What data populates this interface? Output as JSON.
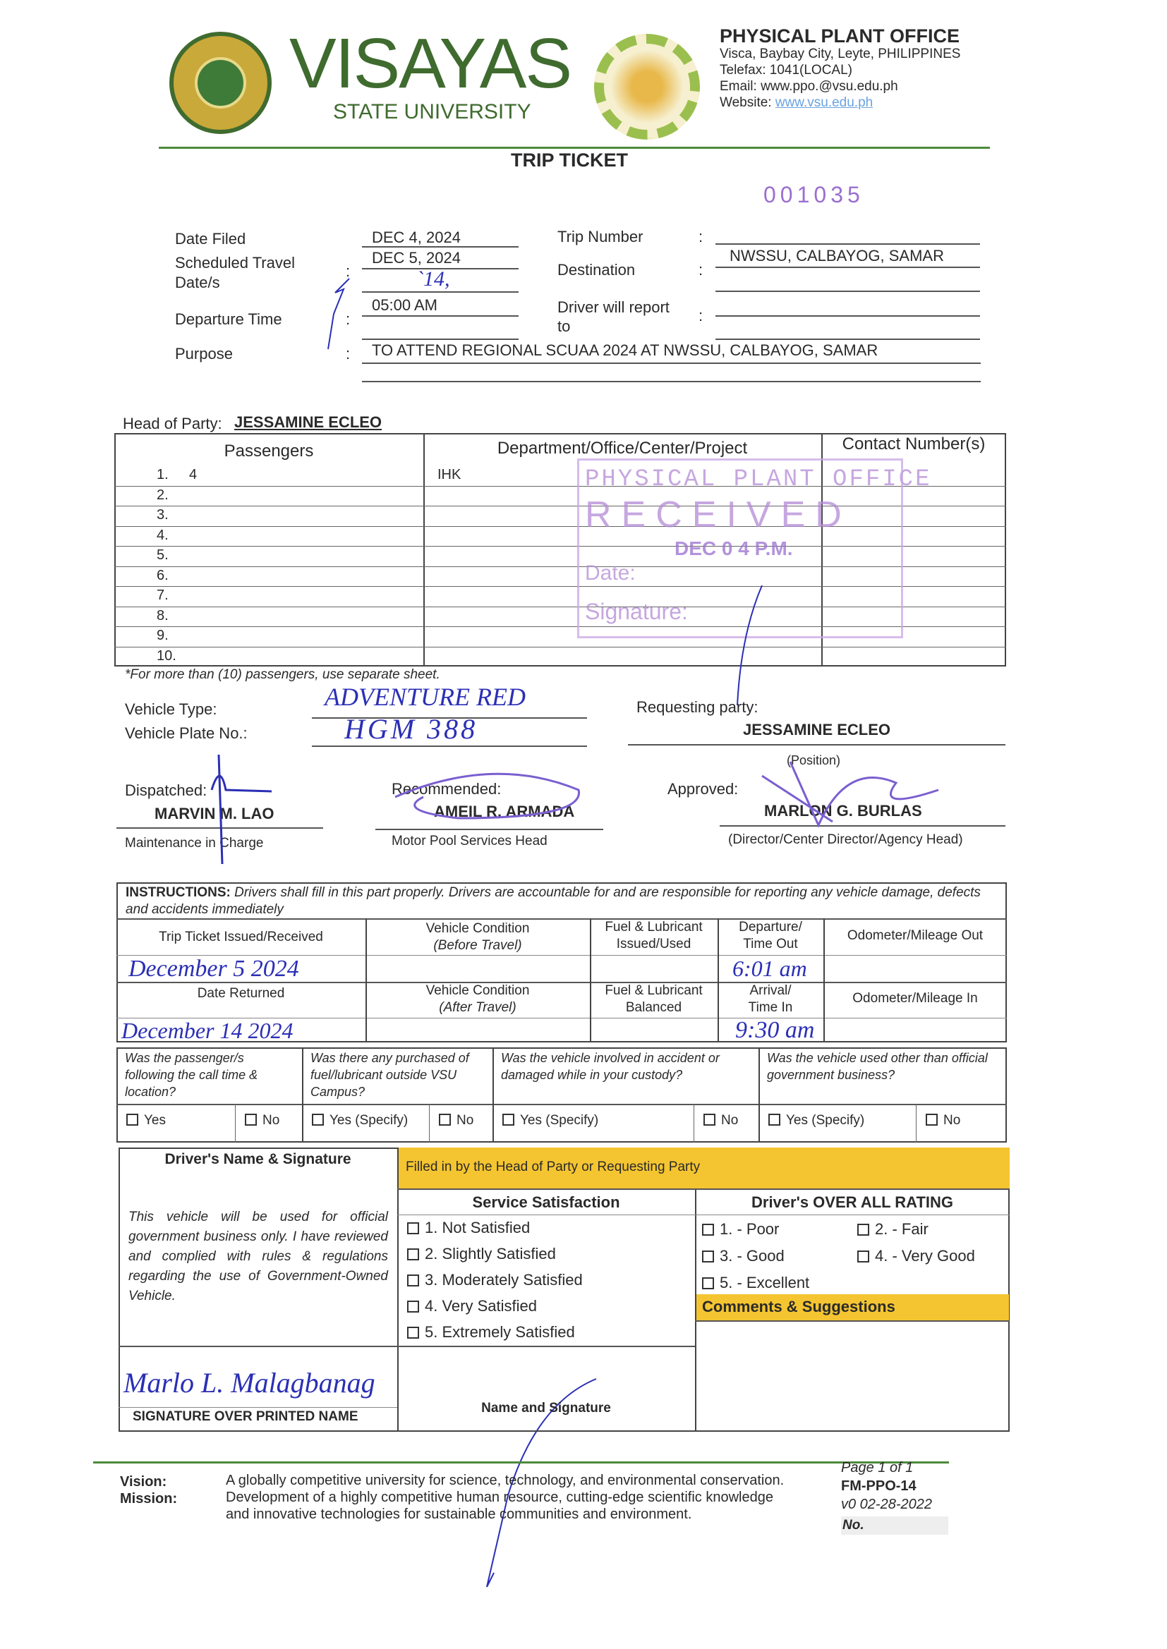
{
  "header": {
    "seal_text": "VISAYAS STATE UNIVERSITY",
    "univ_name": "VISAYAS",
    "univ_sub": "STATE UNIVERSITY",
    "gear_logo_text": "PHYSICAL PLANT OFFICE",
    "office": "PHYSICAL PLANT OFFICE",
    "address": "Visca, Baybay City, Leyte, PHILIPPINES",
    "telefax": "Telefax: 1041(LOCAL)",
    "email": "Email: www.ppo.@vsu.edu.ph",
    "website_label": "Website:",
    "website": "www.vsu.edu.ph",
    "accent_green": "#4d8a3a"
  },
  "title": "TRIP TICKET",
  "serial": "001035",
  "form": {
    "date_filed_label": "Date Filed",
    "date_filed": "DEC 4,  2024",
    "travel_label1": "Scheduled Travel",
    "travel_label2": "Date/s",
    "travel_date": "DEC 5, 2024",
    "travel_date2": "`14,",
    "departure_label": "Departure Time",
    "departure": "05:00 AM",
    "purpose_label": "Purpose",
    "purpose": "TO ATTEND REGIONAL SCUAA 2024 AT NWSSU, CALBAYOG, SAMAR",
    "trip_label": "Trip Number",
    "trip": "",
    "dest_label": "Destination",
    "dest": "NWSSU, CALBAYOG, SAMAR",
    "report_label1": "Driver will report",
    "report_label2": "to",
    "colon": ":"
  },
  "head_party_label": "Head of Party:",
  "head_party": "JESSAMINE ECLEO",
  "passengers": {
    "headers": [
      "Passengers",
      "Department/Office/Center/Project",
      "Contact Number(s)"
    ],
    "rows": [
      {
        "no": "1.",
        "name": "4",
        "dept": "IHK"
      },
      {
        "no": "2."
      },
      {
        "no": "3."
      },
      {
        "no": "4."
      },
      {
        "no": "5."
      },
      {
        "no": "6."
      },
      {
        "no": "7."
      },
      {
        "no": "8."
      },
      {
        "no": "9."
      },
      {
        "no": "10."
      }
    ],
    "note": "*For more than (10) passengers, use separate sheet."
  },
  "stamp": {
    "line1": "PHYSICAL PLANT OFFICE",
    "line2": "RECEIVED",
    "date_label": "Date:",
    "date": "DEC 0 4 P.M.",
    "sig_label": "Signature:",
    "color": "#b48ad6"
  },
  "vehicle": {
    "type_label": "Vehicle Type:",
    "type": "ADVENTURE RED",
    "plate_label": "Vehicle Plate No.:",
    "plate": "HGM 388"
  },
  "requesting": {
    "label": "Requesting party:",
    "name": "JESSAMINE ECLEO",
    "position": "(Position)"
  },
  "dispatched": {
    "label": "Dispatched:",
    "name": "MARVIN M. LAO",
    "role": "Maintenance in Charge"
  },
  "recommended": {
    "label": "Recommended:",
    "name": "AMEIL R. ARMADA",
    "role": "Motor Pool Services Head"
  },
  "approved": {
    "label": "Approved:",
    "name": "MARLON G. BURLAS",
    "role": "(Director/Center Director/Agency Head)"
  },
  "instr": {
    "bold": "INSTRUCTIONS:",
    "text": " Drivers shall fill in this part properly.  Drivers are accountable for and are responsible for reporting any vehicle damage, defects and accidents immediately",
    "issued": "Trip Ticket Issued/Received",
    "vc_before1": "Vehicle Condition",
    "vc_before2": "(Before Travel)",
    "fuel_issued1": "Fuel & Lubricant",
    "fuel_issued2": "Issued/Used",
    "dep1": "Departure/",
    "dep2": "Time Out",
    "odo_out": "Odometer/Mileage Out",
    "issued_val": "December 5 2024",
    "dep_val": "6:01 am",
    "returned": "Date Returned",
    "vc_after1": "Vehicle Condition",
    "vc_after2": "(After Travel)",
    "fuel_bal1": "Fuel & Lubricant",
    "fuel_bal2": "Balanced",
    "arr1": "Arrival/",
    "arr2": "Time In",
    "odo_in": "Odometer/Mileage In",
    "returned_val": "December 14 2024",
    "arr_val": "9:30 am"
  },
  "questions": [
    {
      "q": "Was the passenger/s following the call time & location?",
      "yes": "Yes",
      "no": "No"
    },
    {
      "q": "Was there any purchased of fuel/lubricant outside VSU Campus?",
      "yes": "Yes (Specify)",
      "no": "No"
    },
    {
      "q": "Was the vehicle involved in accident or damaged while in your custody?",
      "yes": "Yes (Specify)",
      "no": "No"
    },
    {
      "q": "Was the vehicle used other than official government business?",
      "yes": "Yes (Specify)",
      "no": "No"
    }
  ],
  "bottom": {
    "driver_header": "Driver's Name & Signature",
    "filled_by": "Filled in by the Head of Party or Requesting Party",
    "statement": "This vehicle will be used for official government business only.  I have reviewed and complied with rules & regulations regarding the use of Government-Owned Vehicle.",
    "driver_sig": "Marlo L. Malagbanag",
    "sig_label": "SIGNATURE OVER PRINTED NAME",
    "ss_header": "Service Satisfaction",
    "ss_items": [
      "1.  Not Satisfied",
      "2.  Slightly Satisfied",
      "3.  Moderately Satisfied",
      "4.  Very Satisfied",
      "5.  Extremely Satisfied"
    ],
    "name_sig": "Name and Signature",
    "rating_header": "Driver's OVER ALL RATING",
    "ratings": [
      "1. - Poor",
      "2. - Fair",
      "3. - Good",
      "4. - Very Good",
      "5. - Excellent"
    ],
    "comments": "Comments & Suggestions",
    "yellow": "#f5c531"
  },
  "footer": {
    "vision_label": "Vision:",
    "vision": "A globally competitive university for science, technology, and environmental conservation.",
    "mission_label": "Mission:",
    "mission1": "Development of a highly competitive human resource, cutting-edge scientific knowledge",
    "mission2": "and innovative technologies for sustainable communities and environment.",
    "page": "Page 1 of 1",
    "form_code": "FM-PPO-14",
    "version": "v0 02-28-2022",
    "no": "No."
  }
}
